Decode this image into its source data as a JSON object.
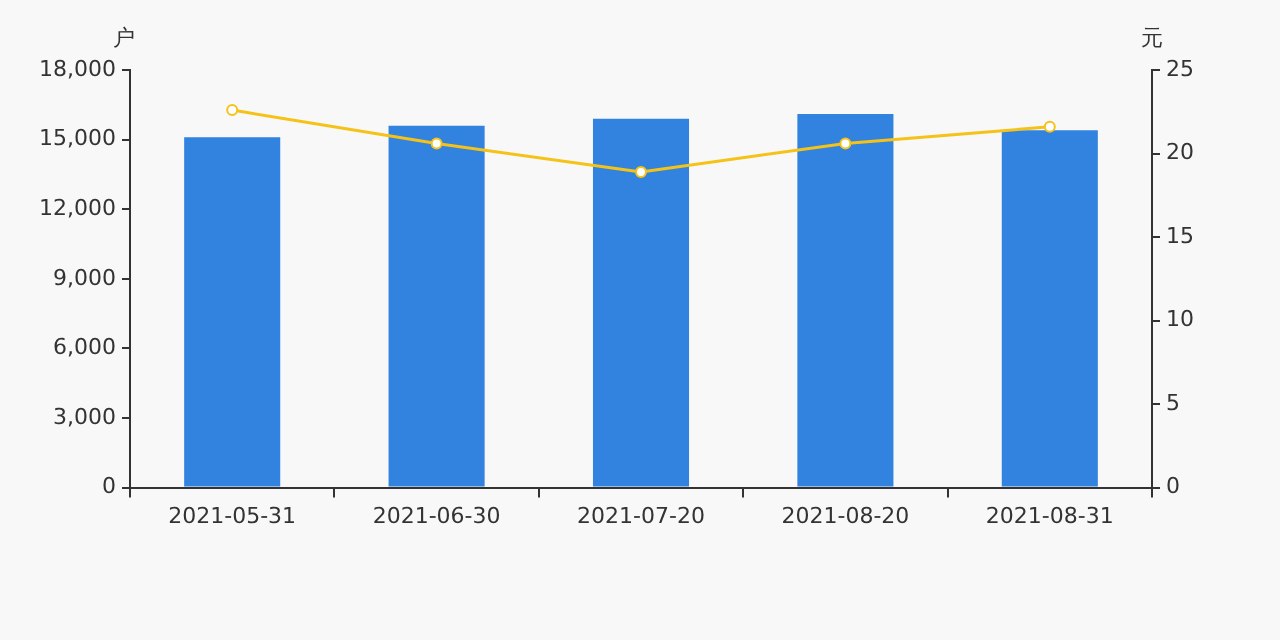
{
  "chart_data": {
    "type": "bar",
    "ylabel": "户",
    "y2label": "元",
    "categories": [
      "2021-05-31",
      "2021-06-30",
      "2021-07-20",
      "2021-08-20",
      "2021-08-31"
    ],
    "series": [
      {
        "color": "#3282e0",
        "values": [
          15100,
          15600,
          15900,
          16100,
          15400
        ]
      },
      {
        "type": "line",
        "axis": "y2",
        "color": "#f5c218",
        "marker": "circle",
        "values": [
          22.6,
          20.6,
          18.9,
          20.6,
          21.6
        ]
      }
    ],
    "ylim": [
      0,
      18000
    ],
    "yticks": [
      0,
      {
        "value": 3000,
        "label": "3,000"
      },
      {
        "value": 6000,
        "label": "6,000"
      },
      {
        "value": 9000,
        "label": "9,000"
      },
      {
        "value": 12000,
        "label": "12,000"
      },
      {
        "value": 15000,
        "label": "15,000"
      },
      {
        "value": 18000,
        "label": "18,000"
      }
    ],
    "y2lim": [
      0,
      25
    ],
    "y2ticks": [
      0,
      5,
      10,
      15,
      20,
      25
    ],
    "grid": false,
    "legend": false
  }
}
